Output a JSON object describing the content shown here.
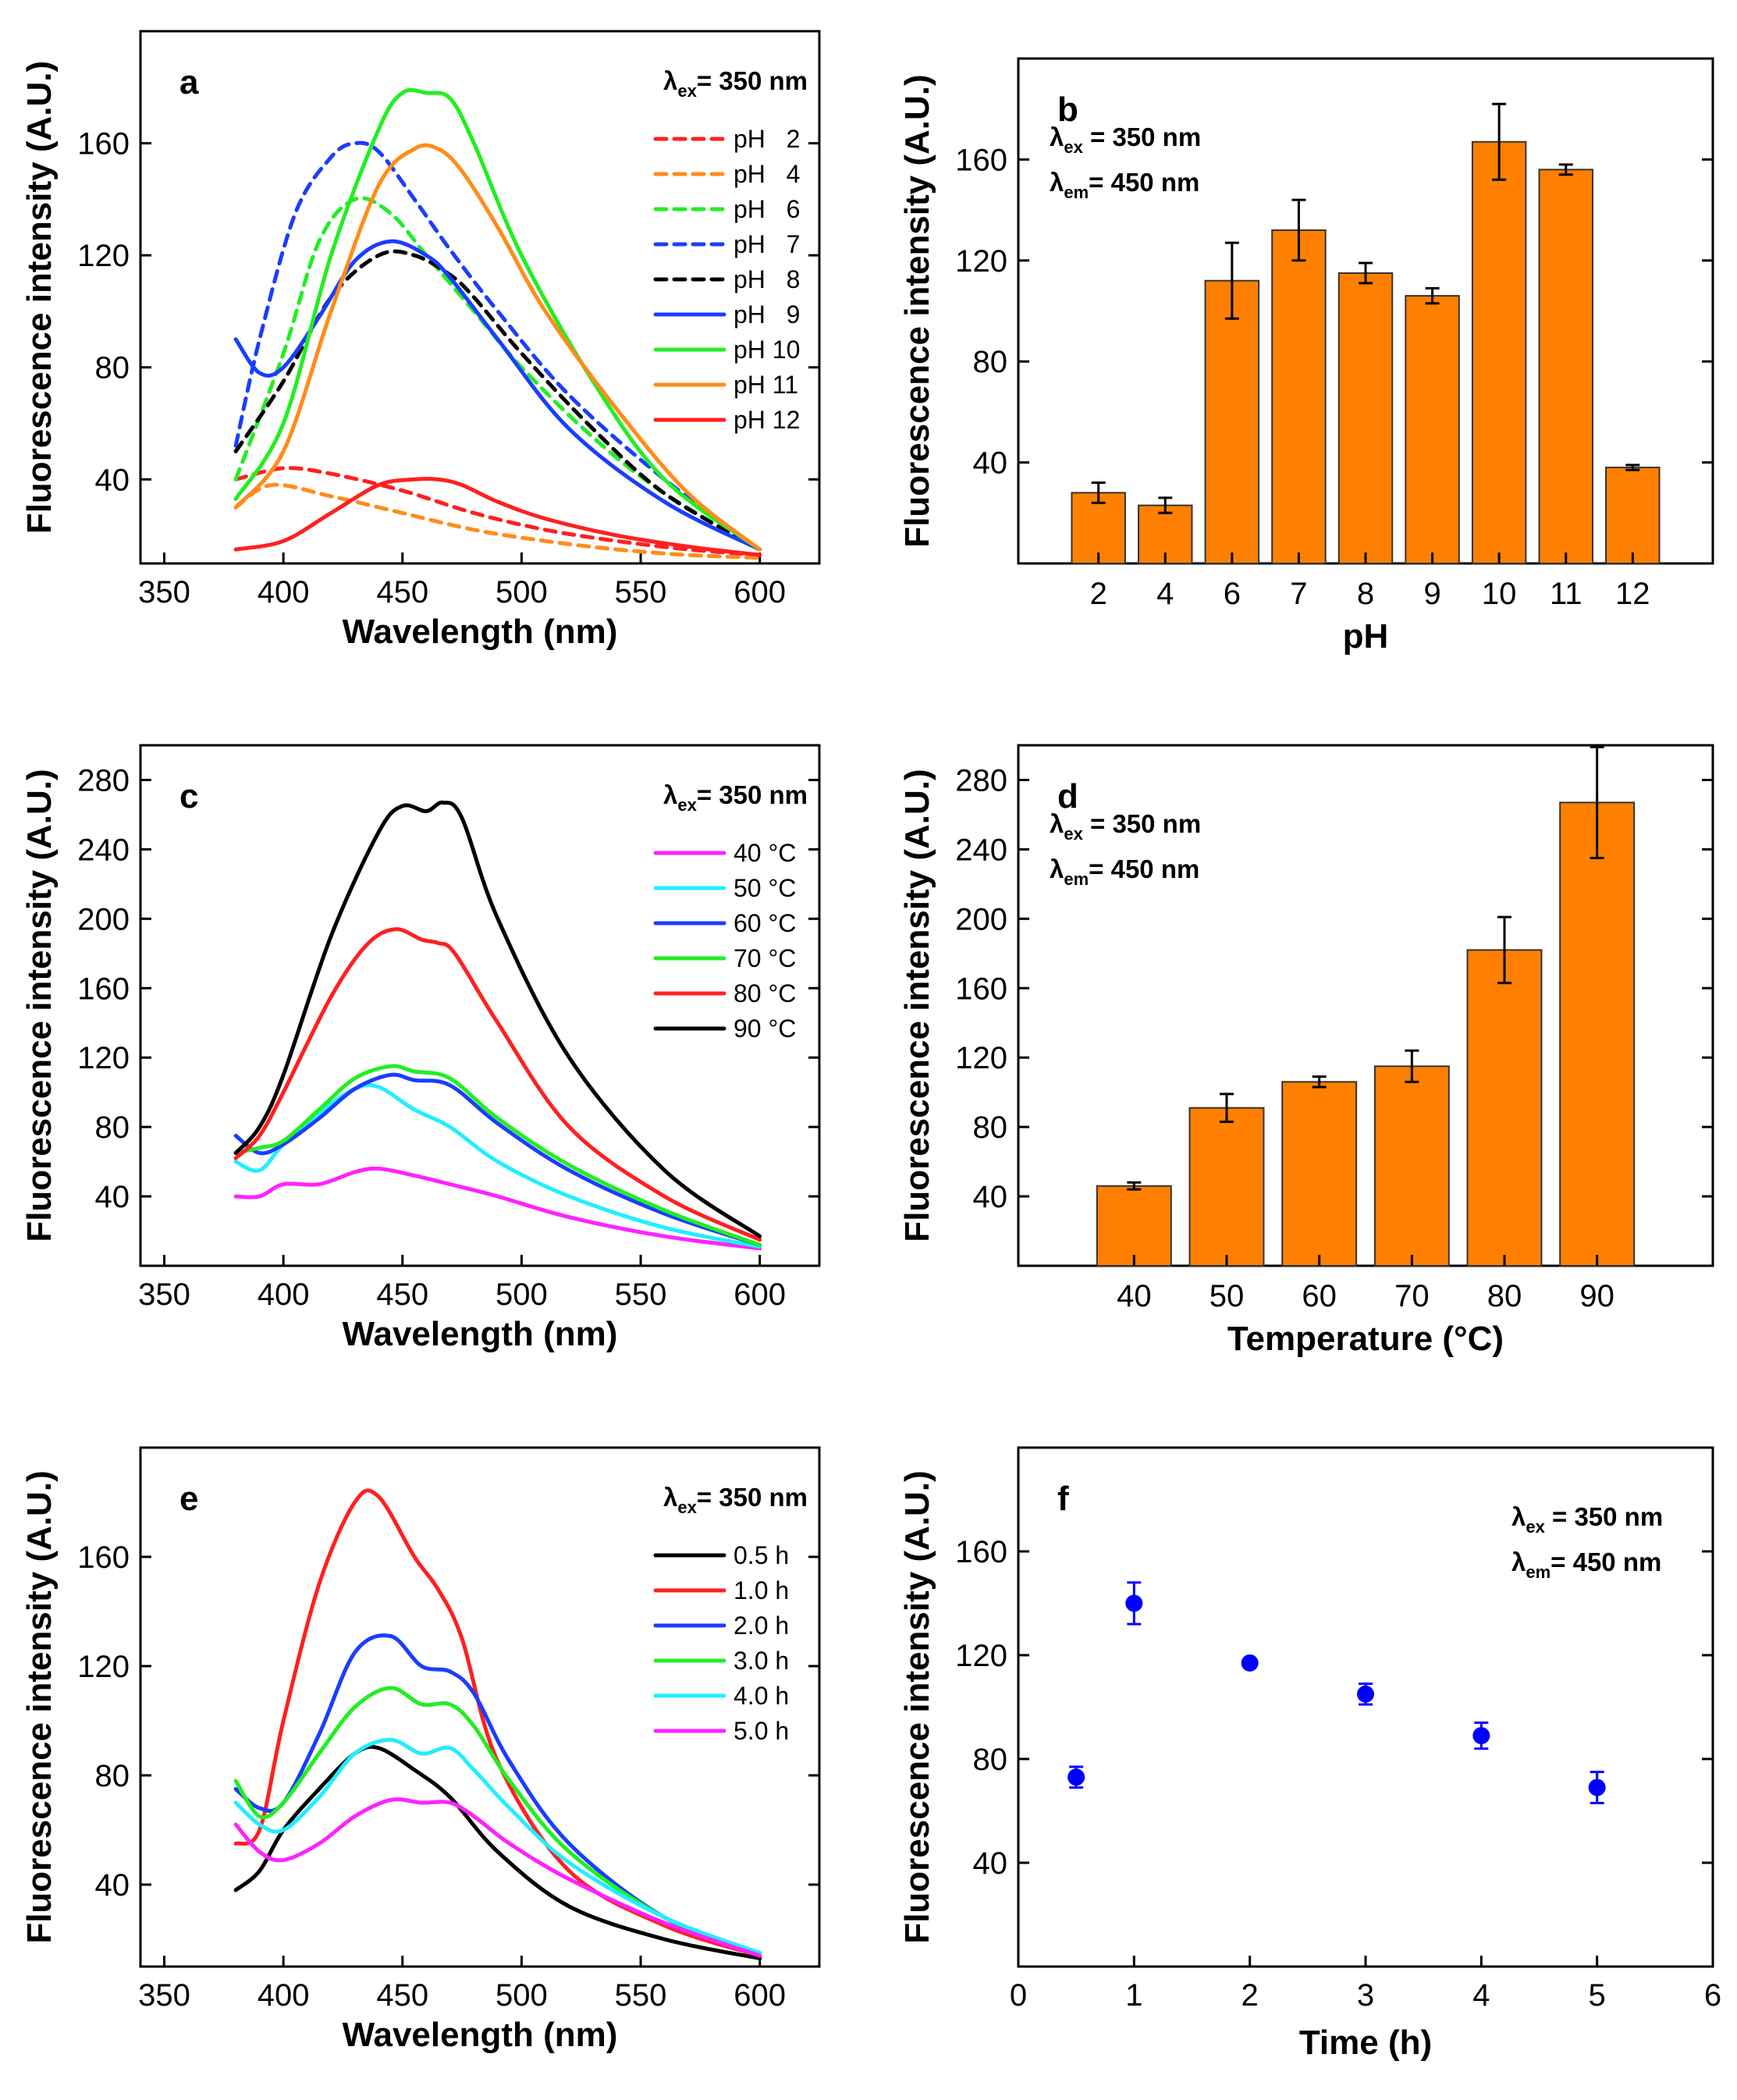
{
  "colors": {
    "red": "#ff2020",
    "orange": "#ff8c1a",
    "green": "#22ee22",
    "blue": "#1a3dff",
    "black": "#000000",
    "magenta": "#ff22ff",
    "cyan": "#22eeff",
    "bar": "#ff8000",
    "point": "#0000ff"
  },
  "chart_data": [
    {
      "id": "a",
      "panel_label": "a",
      "type": "line",
      "xlabel": "Wavelength (nm)",
      "ylabel": "Fluorescence intensity (A.U.)",
      "xlim": [
        340,
        625
      ],
      "ylim": [
        10,
        200
      ],
      "xticks": [
        "350",
        "400",
        "450",
        "500",
        "550",
        "600"
      ],
      "yticks": [
        "40",
        "80",
        "120",
        "160"
      ],
      "annotation": {
        "lambda": "λ",
        "sub_ex": "ex",
        "value": "= 350 nm"
      },
      "series": [
        {
          "name": "pH   2",
          "color": "red",
          "dashed": true,
          "x": [
            380,
            400,
            420,
            450,
            480,
            510,
            540,
            570,
            600
          ],
          "y": [
            40,
            44,
            42,
            36,
            28,
            22,
            18,
            15,
            13
          ]
        },
        {
          "name": "pH   4",
          "color": "orange",
          "dashed": true,
          "x": [
            380,
            395,
            420,
            450,
            480,
            510,
            540,
            570,
            600
          ],
          "y": [
            30,
            38,
            34,
            28,
            22,
            18,
            15,
            13,
            12
          ]
        },
        {
          "name": "pH   6",
          "color": "green",
          "dashed": true,
          "x": [
            380,
            400,
            415,
            430,
            445,
            460,
            480,
            500,
            530,
            560,
            600
          ],
          "y": [
            40,
            85,
            125,
            140,
            135,
            120,
            100,
            80,
            55,
            35,
            15
          ]
        },
        {
          "name": "pH   7",
          "color": "blue",
          "dashed": true,
          "x": [
            380,
            390,
            405,
            420,
            430,
            440,
            455,
            470,
            490,
            520,
            560,
            600
          ],
          "y": [
            52,
            90,
            135,
            155,
            160,
            157,
            140,
            122,
            100,
            70,
            40,
            15
          ]
        },
        {
          "name": "pH   8",
          "color": "black",
          "dashed": true,
          "x": [
            380,
            400,
            420,
            440,
            455,
            470,
            480,
            500,
            530,
            560,
            600
          ],
          "y": [
            50,
            75,
            105,
            120,
            120,
            113,
            105,
            85,
            58,
            35,
            15
          ]
        },
        {
          "name": "pH   9",
          "color": "blue",
          "dashed": false,
          "x": [
            380,
            390,
            400,
            415,
            430,
            445,
            460,
            470,
            490,
            520,
            560,
            600
          ],
          "y": [
            90,
            78,
            80,
            98,
            118,
            125,
            120,
            112,
            90,
            58,
            32,
            15
          ]
        },
        {
          "name": "pH 10",
          "color": "green",
          "dashed": false,
          "x": [
            380,
            400,
            420,
            440,
            450,
            460,
            470,
            480,
            500,
            530,
            560,
            600
          ],
          "y": [
            33,
            60,
            120,
            165,
            178,
            178,
            176,
            160,
            120,
            75,
            40,
            15
          ]
        },
        {
          "name": "pH 11",
          "color": "orange",
          "dashed": false,
          "x": [
            380,
            400,
            420,
            440,
            455,
            465,
            475,
            490,
            510,
            540,
            570,
            600
          ],
          "y": [
            30,
            50,
            100,
            145,
            158,
            158,
            150,
            130,
            100,
            65,
            35,
            15
          ]
        },
        {
          "name": "pH 12",
          "color": "red",
          "dashed": false,
          "x": [
            380,
            400,
            420,
            440,
            455,
            465,
            475,
            490,
            510,
            540,
            570,
            600
          ],
          "y": [
            15,
            18,
            28,
            38,
            40,
            40,
            38,
            32,
            26,
            20,
            16,
            13
          ]
        }
      ]
    },
    {
      "id": "b",
      "panel_label": "b",
      "type": "bar",
      "xlabel": "pH",
      "ylabel": "Fluorescence intensity (A.U.)",
      "ylim": [
        0,
        200
      ],
      "yticks": [
        "40",
        "80",
        "120",
        "160"
      ],
      "categories": [
        "2",
        "4",
        "6",
        "7",
        "8",
        "9",
        "10",
        "11",
        "12"
      ],
      "values": [
        28,
        23,
        112,
        132,
        115,
        106,
        167,
        156,
        38
      ],
      "errors": [
        4,
        3,
        15,
        12,
        4,
        3,
        15,
        2,
        1
      ],
      "annotation_lines": [
        {
          "lambda": "λ",
          "sub": "ex",
          "value": " = 350 nm"
        },
        {
          "lambda": "λ",
          "sub": "em",
          "value": "= 450 nm"
        }
      ]
    },
    {
      "id": "c",
      "panel_label": "c",
      "type": "line",
      "xlabel": "Wavelength (nm)",
      "ylabel": "Fluorescence intensity (A.U.)",
      "xlim": [
        340,
        625
      ],
      "ylim": [
        0,
        300
      ],
      "xticks": [
        "350",
        "400",
        "450",
        "500",
        "550",
        "600"
      ],
      "yticks": [
        "40",
        "80",
        "120",
        "160",
        "200",
        "240",
        "280"
      ],
      "annotation": {
        "lambda": "λ",
        "sub_ex": "ex",
        "value": "= 350 nm"
      },
      "series": [
        {
          "name": "40 °C",
          "color": "magenta",
          "x": [
            380,
            390,
            400,
            415,
            430,
            440,
            455,
            470,
            490,
            520,
            560,
            600
          ],
          "y": [
            40,
            40,
            47,
            47,
            54,
            56,
            52,
            47,
            40,
            28,
            17,
            10
          ]
        },
        {
          "name": "50 °C",
          "color": "cyan",
          "x": [
            380,
            390,
            400,
            415,
            430,
            440,
            455,
            470,
            490,
            520,
            560,
            600
          ],
          "y": [
            60,
            55,
            70,
            88,
            102,
            103,
            90,
            80,
            60,
            40,
            22,
            11
          ]
        },
        {
          "name": "60 °C",
          "color": "blue",
          "x": [
            380,
            390,
            400,
            415,
            430,
            445,
            455,
            470,
            490,
            520,
            560,
            600
          ],
          "y": [
            75,
            65,
            70,
            85,
            102,
            110,
            107,
            104,
            82,
            55,
            30,
            12
          ]
        },
        {
          "name": "70 °C",
          "color": "green",
          "x": [
            380,
            390,
            400,
            415,
            430,
            445,
            455,
            470,
            490,
            520,
            560,
            600
          ],
          "y": [
            65,
            68,
            72,
            90,
            108,
            115,
            112,
            108,
            85,
            58,
            32,
            12
          ]
        },
        {
          "name": "80 °C",
          "color": "red",
          "x": [
            380,
            390,
            400,
            420,
            435,
            447,
            458,
            465,
            472,
            490,
            520,
            560,
            600
          ],
          "y": [
            62,
            75,
            100,
            155,
            185,
            194,
            188,
            186,
            180,
            140,
            80,
            40,
            15
          ]
        },
        {
          "name": "90 °C",
          "color": "black",
          "x": [
            380,
            390,
            400,
            420,
            440,
            450,
            460,
            467,
            475,
            490,
            520,
            560,
            600
          ],
          "y": [
            65,
            80,
            110,
            190,
            250,
            265,
            262,
            267,
            258,
            200,
            120,
            55,
            17
          ]
        }
      ]
    },
    {
      "id": "d",
      "panel_label": "d",
      "type": "bar",
      "xlabel": "Temperature (°C)",
      "ylabel": "Fluorescence intensity (A.U.)",
      "ylim": [
        0,
        300
      ],
      "yticks": [
        "40",
        "80",
        "120",
        "160",
        "200",
        "240",
        "280"
      ],
      "categories": [
        "40",
        "50",
        "60",
        "70",
        "80",
        "90"
      ],
      "values": [
        46,
        91,
        106,
        115,
        182,
        267
      ],
      "errors": [
        2,
        8,
        3,
        9,
        19,
        32
      ],
      "annotation_lines": [
        {
          "lambda": "λ",
          "sub": "ex",
          "value": " = 350 nm"
        },
        {
          "lambda": "λ",
          "sub": "em",
          "value": "= 450 nm"
        }
      ]
    },
    {
      "id": "e",
      "panel_label": "e",
      "type": "line",
      "xlabel": "Wavelength (nm)",
      "ylabel": "Fluorescence intensity (A.U.)",
      "xlim": [
        340,
        625
      ],
      "ylim": [
        10,
        200
      ],
      "xticks": [
        "350",
        "400",
        "450",
        "500",
        "550",
        "600"
      ],
      "yticks": [
        "40",
        "80",
        "120",
        "160"
      ],
      "annotation": {
        "lambda": "λ",
        "sub_ex": "ex",
        "value": "= 350 nm"
      },
      "series": [
        {
          "name": "0.5 h",
          "color": "black",
          "x": [
            380,
            390,
            400,
            415,
            430,
            440,
            455,
            470,
            490,
            520,
            560,
            600
          ],
          "y": [
            38,
            45,
            60,
            75,
            88,
            90,
            82,
            72,
            52,
            32,
            20,
            13
          ]
        },
        {
          "name": "1.0 h",
          "color": "red",
          "x": [
            380,
            390,
            400,
            415,
            430,
            440,
            455,
            465,
            475,
            490,
            520,
            560,
            600
          ],
          "y": [
            55,
            60,
            100,
            150,
            180,
            182,
            160,
            148,
            130,
            85,
            45,
            25,
            14
          ]
        },
        {
          "name": "2.0 h",
          "color": "blue",
          "x": [
            380,
            390,
            400,
            415,
            430,
            445,
            458,
            470,
            480,
            495,
            520,
            560,
            600
          ],
          "y": [
            75,
            68,
            70,
            95,
            125,
            131,
            120,
            118,
            110,
            85,
            55,
            28,
            15
          ]
        },
        {
          "name": "3.0 h",
          "color": "green",
          "x": [
            380,
            390,
            400,
            415,
            430,
            445,
            458,
            470,
            480,
            495,
            520,
            560,
            600
          ],
          "y": [
            78,
            65,
            70,
            88,
            105,
            112,
            106,
            106,
            98,
            78,
            52,
            28,
            15
          ]
        },
        {
          "name": "4.0 h",
          "color": "cyan",
          "x": [
            380,
            390,
            400,
            415,
            430,
            445,
            458,
            470,
            480,
            495,
            520,
            560,
            600
          ],
          "y": [
            70,
            62,
            60,
            72,
            88,
            93,
            88,
            90,
            82,
            68,
            48,
            28,
            15
          ]
        },
        {
          "name": "5.0 h",
          "color": "magenta",
          "x": [
            380,
            390,
            400,
            415,
            430,
            445,
            458,
            470,
            480,
            495,
            520,
            560,
            600
          ],
          "y": [
            62,
            52,
            49,
            55,
            65,
            71,
            70,
            70,
            65,
            55,
            42,
            26,
            14
          ]
        }
      ]
    },
    {
      "id": "f",
      "panel_label": "f",
      "type": "scatter",
      "xlabel": "Time (h)",
      "ylabel": "Fluorescence intensity (A.U.)",
      "xlim": [
        0,
        6
      ],
      "ylim": [
        0,
        200
      ],
      "xticks": [
        "0",
        "1",
        "2",
        "3",
        "4",
        "5",
        "6"
      ],
      "yticks": [
        "40",
        "80",
        "120",
        "160"
      ],
      "x": [
        0.5,
        1,
        2,
        3,
        4,
        5
      ],
      "y": [
        73,
        140,
        117,
        105,
        89,
        69
      ],
      "errors": [
        4,
        8,
        1,
        4,
        5,
        6
      ],
      "annotation_lines": [
        {
          "lambda": "λ",
          "sub": "ex",
          "value": " = 350 nm"
        },
        {
          "lambda": "λ",
          "sub": "em",
          "value": "= 450 nm"
        }
      ]
    }
  ]
}
